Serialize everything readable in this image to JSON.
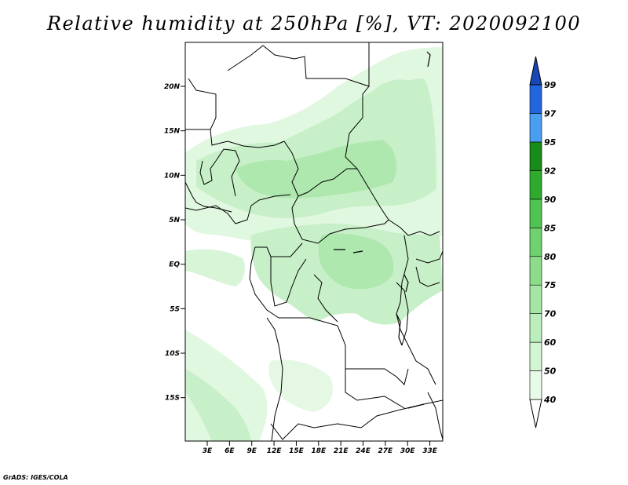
{
  "title": "Relative humidity at 250hPa [%], VT: 2020092100",
  "credit": "GrADS: IGES/COLA",
  "map": {
    "lat_ticks": [
      "20N",
      "15N",
      "10N",
      "5N",
      "EQ",
      "5S",
      "10S",
      "15S"
    ],
    "lon_ticks": [
      "3E",
      "6E",
      "9E",
      "12E",
      "15E",
      "18E",
      "21E",
      "24E",
      "27E",
      "30E",
      "33E"
    ]
  },
  "colorbar": {
    "levels": [
      "40",
      "50",
      "60",
      "70",
      "75",
      "80",
      "85",
      "90",
      "92",
      "95",
      "97",
      "99"
    ],
    "colors": [
      "#ffffff",
      "#e8fae8",
      "#d2f5d2",
      "#bceebc",
      "#a4e6a4",
      "#8cdc8c",
      "#6ed26e",
      "#50c450",
      "#2eaa2e",
      "#188c18",
      "#4a9ef0",
      "#2266dd",
      "#1846b4"
    ]
  }
}
